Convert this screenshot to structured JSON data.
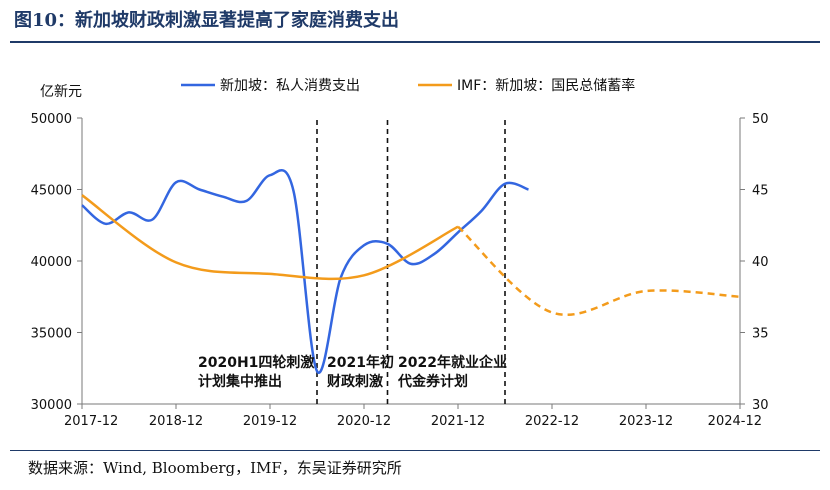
{
  "figure": {
    "title": "图10：新加坡财政刺激显著提高了家庭消费支出",
    "source": "数据来源：Wind, Bloomberg，IMF，东吴证券研究所"
  },
  "colors": {
    "blue": "#3366e0",
    "orange": "#f39b1b",
    "title": "#1f3a68"
  },
  "chart_data": {
    "type": "line",
    "title": "",
    "ylabel": "亿新元",
    "y2label": "",
    "xlim": [
      "2017-12",
      "2024-12"
    ],
    "ylim": [
      30000,
      50000
    ],
    "y2lim": [
      30,
      50
    ],
    "x_ticks": [
      "2017-12",
      "2018-12",
      "2019-12",
      "2020-12",
      "2021-12",
      "2022-12",
      "2023-12",
      "2024-12"
    ],
    "y_ticks": [
      30000,
      35000,
      40000,
      45000,
      50000
    ],
    "y2_ticks": [
      30,
      35,
      40,
      45,
      50
    ],
    "legend_position": "top",
    "grid": false,
    "series": [
      {
        "name": "新加坡：私人消费支出",
        "axis": "left",
        "style": "solid",
        "x": [
          "2017-12",
          "2018-03",
          "2018-06",
          "2018-09",
          "2018-12",
          "2019-03",
          "2019-06",
          "2019-09",
          "2019-12",
          "2020-03",
          "2020-06",
          "2020-09",
          "2020-12",
          "2021-03",
          "2021-06",
          "2021-09",
          "2021-12",
          "2022-03",
          "2022-06",
          "2022-09"
        ],
        "y": [
          43900,
          42600,
          43400,
          42900,
          45500,
          45000,
          44500,
          44200,
          46000,
          44900,
          32300,
          38800,
          41100,
          41200,
          39800,
          40500,
          42000,
          43500,
          45400,
          45000
        ]
      },
      {
        "name": "IMF：新加坡：国民总储蓄率",
        "axis": "right",
        "x": [
          "2017-12",
          "2018-12",
          "2019-12",
          "2020-12",
          "2021-12",
          "2022-12",
          "2023-12",
          "2024-12"
        ],
        "y": [
          44.6,
          39.9,
          39.1,
          39.0,
          42.4,
          36.4,
          37.9,
          37.5
        ],
        "solid_through": "2021-12",
        "dashed_after": "2021-12"
      }
    ],
    "vlines": [
      "2020-06",
      "2021-03",
      "2022-06"
    ],
    "annotations": [
      {
        "text_line1": "2020H1四轮刺激",
        "text_line2": "计划集中推出"
      },
      {
        "text_line1": "2021年初",
        "text_line2": "财政刺激"
      },
      {
        "text_line1": "2022年就业企业",
        "text_line2": "代金券计划"
      }
    ]
  }
}
